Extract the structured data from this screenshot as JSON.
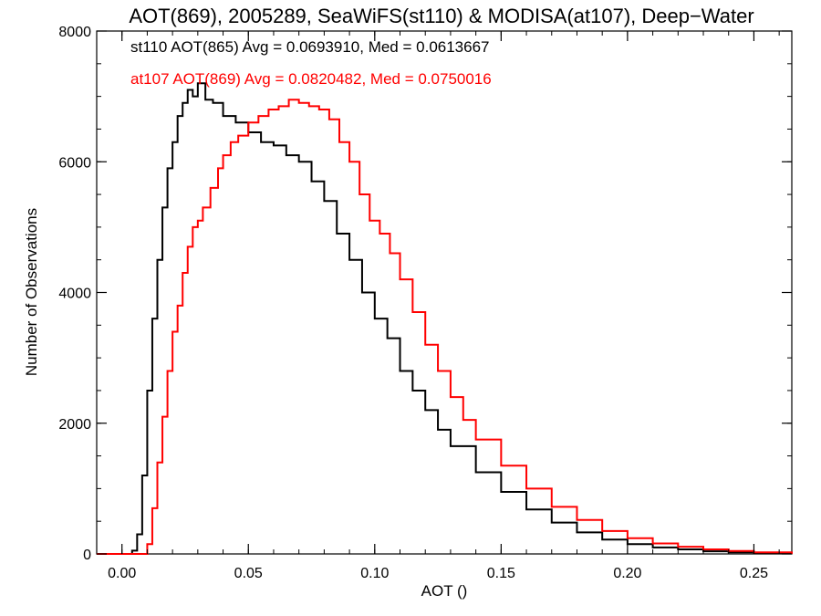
{
  "chart_data": {
    "type": "histogram",
    "title": "AOT(869), 2005289, SeaWiFS(st110) & MODISA(at107), Deep−Water",
    "xlabel": "AOT ()",
    "ylabel": "Number of Observations",
    "xlim": [
      -0.01,
      0.265
    ],
    "ylim": [
      0,
      8000
    ],
    "xticks": [
      0.0,
      0.05,
      0.1,
      0.15,
      0.2,
      0.25
    ],
    "xtick_labels": [
      "0.00",
      "0.05",
      "0.10",
      "0.15",
      "0.20",
      "0.25"
    ],
    "yticks": [
      0,
      2000,
      4000,
      6000,
      8000
    ],
    "ytick_labels": [
      "0",
      "2000",
      "4000",
      "6000",
      "8000"
    ],
    "grid": false,
    "legend_position": "top-left",
    "series": [
      {
        "name": "st110 AOT(865) Avg = 0.0693910, Med = 0.0613667",
        "color": "#000000",
        "stat_avg": 0.069391,
        "stat_med": 0.0613667,
        "x": [
          -0.01,
          0.002,
          0.004,
          0.006,
          0.008,
          0.01,
          0.012,
          0.014,
          0.016,
          0.018,
          0.02,
          0.022,
          0.024,
          0.026,
          0.028,
          0.03,
          0.033,
          0.036,
          0.04,
          0.045,
          0.05,
          0.055,
          0.06,
          0.065,
          0.07,
          0.075,
          0.08,
          0.085,
          0.09,
          0.095,
          0.1,
          0.105,
          0.11,
          0.115,
          0.12,
          0.125,
          0.13,
          0.14,
          0.15,
          0.16,
          0.17,
          0.18,
          0.19,
          0.2,
          0.21,
          0.22,
          0.23,
          0.24,
          0.25,
          0.265
        ],
        "y": [
          0,
          0,
          50,
          300,
          1200,
          2500,
          3600,
          4500,
          5300,
          5900,
          6300,
          6700,
          6900,
          7100,
          7000,
          7200,
          6950,
          6900,
          6700,
          6600,
          6450,
          6300,
          6250,
          6100,
          6000,
          5700,
          5400,
          4900,
          4500,
          4000,
          3600,
          3300,
          2800,
          2500,
          2200,
          1900,
          1650,
          1250,
          950,
          680,
          480,
          330,
          220,
          150,
          100,
          70,
          40,
          25,
          15,
          0
        ]
      },
      {
        "name": "at107 AOT(869) Avg = 0.0820482, Med = 0.0750016",
        "color": "#ff0000",
        "stat_avg": 0.0820482,
        "stat_med": 0.0750016,
        "x": [
          -0.01,
          0.008,
          0.01,
          0.012,
          0.014,
          0.016,
          0.018,
          0.02,
          0.022,
          0.024,
          0.026,
          0.028,
          0.03,
          0.032,
          0.035,
          0.038,
          0.04,
          0.043,
          0.046,
          0.05,
          0.054,
          0.058,
          0.062,
          0.066,
          0.07,
          0.074,
          0.078,
          0.082,
          0.086,
          0.09,
          0.094,
          0.098,
          0.102,
          0.106,
          0.11,
          0.115,
          0.12,
          0.125,
          0.13,
          0.135,
          0.14,
          0.15,
          0.16,
          0.17,
          0.18,
          0.19,
          0.2,
          0.21,
          0.22,
          0.23,
          0.24,
          0.25,
          0.265
        ],
        "y": [
          0,
          0,
          150,
          700,
          1400,
          2100,
          2800,
          3400,
          3800,
          4300,
          4700,
          5000,
          5100,
          5300,
          5600,
          5900,
          6100,
          6300,
          6400,
          6600,
          6700,
          6800,
          6850,
          6950,
          6900,
          6850,
          6800,
          6650,
          6300,
          6000,
          5500,
          5100,
          4900,
          4600,
          4200,
          3700,
          3200,
          2800,
          2400,
          2050,
          1750,
          1350,
          1000,
          720,
          520,
          350,
          240,
          160,
          110,
          70,
          45,
          25,
          0
        ]
      }
    ]
  }
}
